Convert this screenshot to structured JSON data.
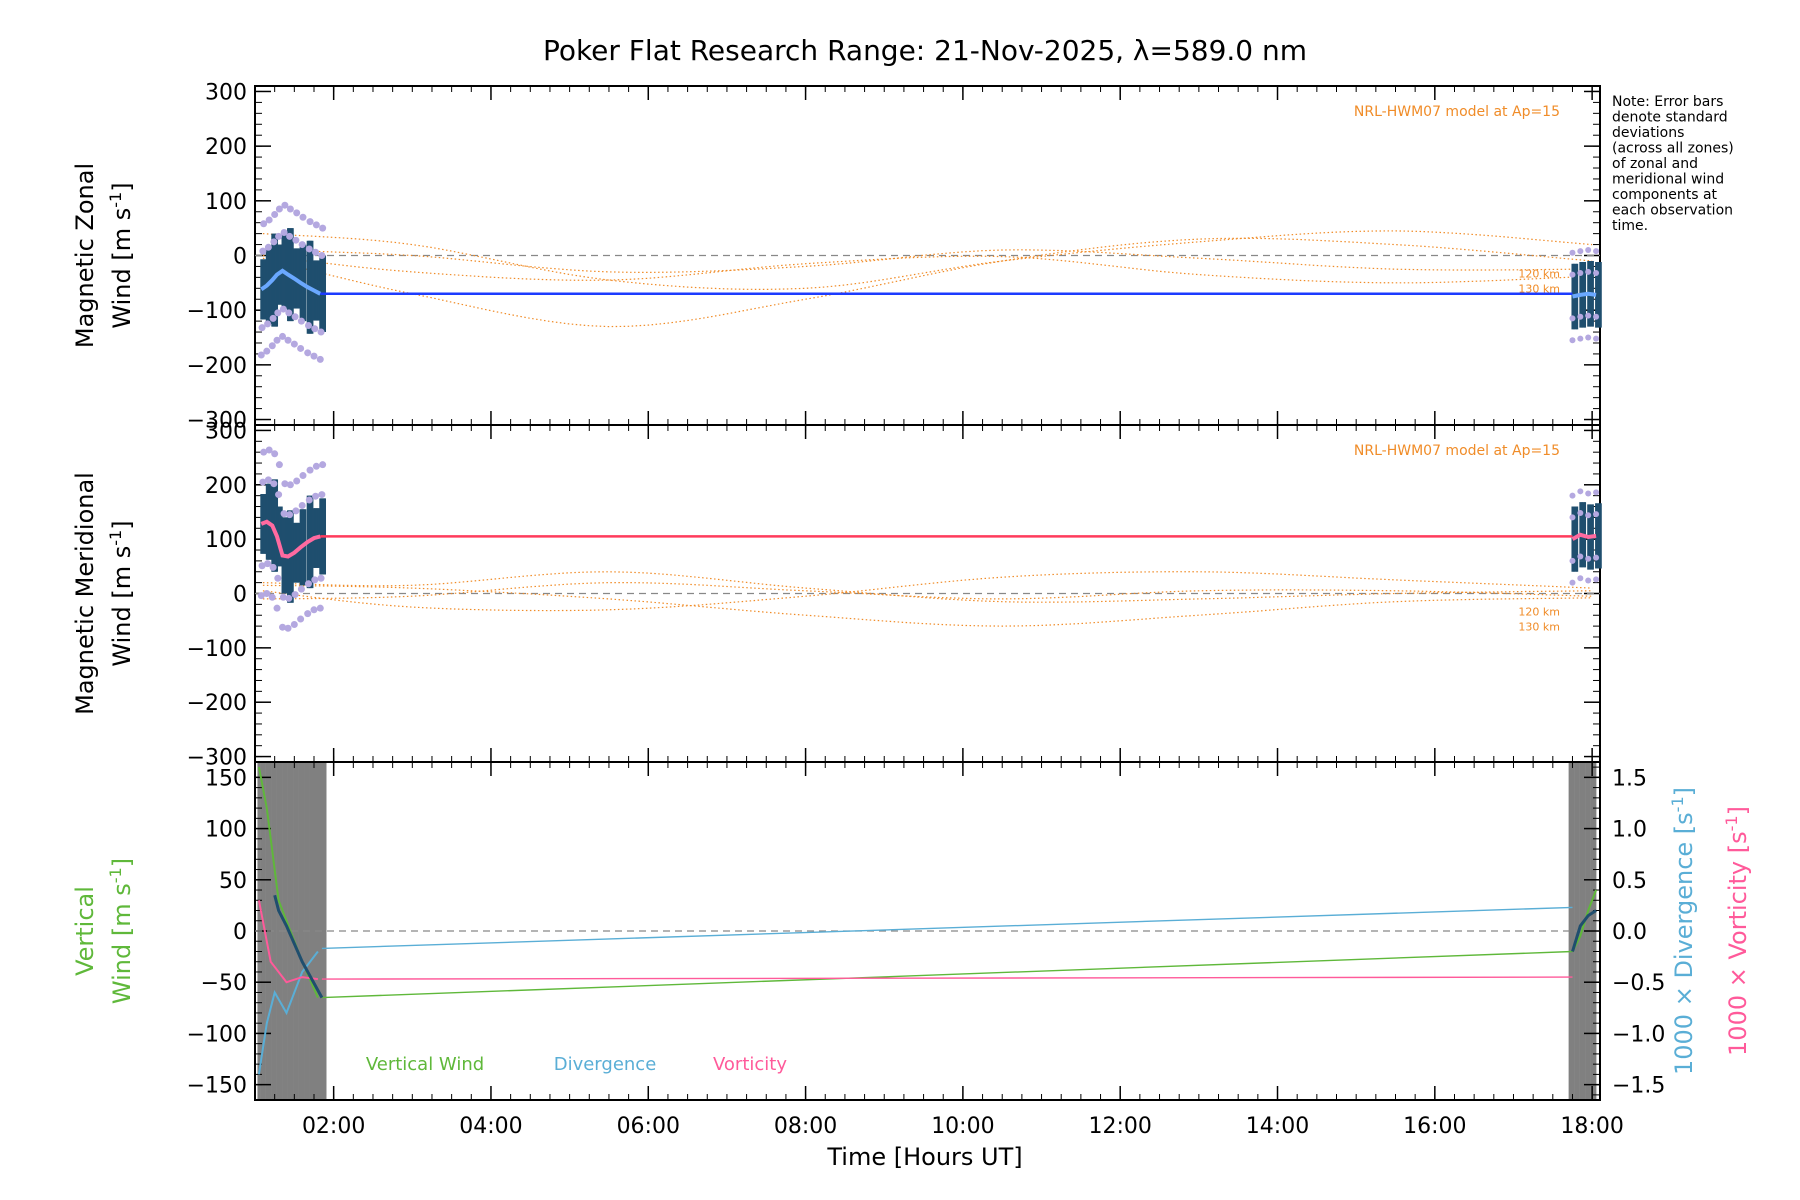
{
  "title": "Poker Flat Research Range: 21-Nov-2025, λ=589.0 nm",
  "note": "Note: Error bars denote standard deviations (across all zones) of zonal and meridional wind components at each observation time.",
  "note_lines": [
    "Note: Error bars",
    "denote standard",
    "deviations",
    "(across all zones)",
    "of zonal and",
    "meridional wind",
    "components at",
    "each observation",
    "time."
  ],
  "colors": {
    "zonal": "#1c3bff",
    "meridional": "#ff3b5c",
    "model": "#f08c28",
    "errorbar": "#1f4e6e",
    "zone": "#b4a8e0",
    "vertical": "#5fb83a",
    "divergence": "#5aaed6",
    "vorticity": "#ff5a9a",
    "sky": "#808080"
  },
  "chart_data": [
    {
      "type": "line",
      "name": "zonal",
      "ylabel_top": "Magnetic Zonal",
      "ylabel_bottom": "Wind [m s",
      "ylabel_sup": "-1",
      "ylabel_close": "]",
      "ylim": [
        -310,
        310
      ],
      "yticks": [
        -300,
        -200,
        -100,
        0,
        100,
        200,
        300
      ],
      "model_label": "NRL-HWM07 model at Ap=15",
      "model_levels": [
        "120 km",
        "130 km"
      ],
      "series_hours": [
        1.08,
        1.15,
        1.22,
        1.28,
        1.35,
        1.42,
        1.5,
        1.58,
        1.67,
        1.75,
        1.83
      ],
      "series_values": [
        -62,
        -55,
        -45,
        -35,
        -28,
        -35,
        -42,
        -50,
        -58,
        -64,
        -70
      ],
      "flat_value": -70,
      "late_hours": [
        17.75,
        17.85,
        17.95,
        18.05
      ],
      "late_values": [
        -75,
        -72,
        -70,
        -72
      ],
      "model_curves": [
        [
          [
            1.1,
            40
          ],
          [
            3.0,
            20
          ],
          [
            5.5,
            -45
          ],
          [
            8.0,
            -60
          ],
          [
            10.5,
            -10
          ],
          [
            13.0,
            25
          ],
          [
            15.5,
            45
          ],
          [
            18.0,
            20
          ]
        ],
        [
          [
            1.1,
            10
          ],
          [
            3.0,
            0
          ],
          [
            5.5,
            -30
          ],
          [
            8.0,
            -20
          ],
          [
            10.5,
            10
          ],
          [
            13.0,
            -5
          ],
          [
            15.5,
            -25
          ],
          [
            18.0,
            -25
          ]
        ],
        [
          [
            1.1,
            -5
          ],
          [
            3.0,
            -70
          ],
          [
            5.5,
            -130
          ],
          [
            8.0,
            -80
          ],
          [
            10.5,
            -10
          ],
          [
            13.0,
            30
          ],
          [
            15.5,
            20
          ],
          [
            18.0,
            -10
          ]
        ],
        [
          [
            1.1,
            0
          ],
          [
            3.0,
            -30
          ],
          [
            5.5,
            -45
          ],
          [
            8.0,
            -15
          ],
          [
            10.5,
            -2
          ],
          [
            13.0,
            -35
          ],
          [
            15.5,
            -50
          ],
          [
            18.0,
            -38
          ]
        ]
      ]
    },
    {
      "type": "line",
      "name": "meridional",
      "ylabel_top": "Magnetic Meridional",
      "ylabel_bottom": "Wind [m s",
      "ylabel_sup": "-1",
      "ylabel_close": "]",
      "ylim": [
        -310,
        310
      ],
      "yticks": [
        -300,
        -200,
        -100,
        0,
        100,
        200,
        300
      ],
      "model_label": "NRL-HWM07 model at Ap=15",
      "model_levels": [
        "120 km",
        "130 km"
      ],
      "series_hours": [
        1.08,
        1.15,
        1.22,
        1.28,
        1.35,
        1.42,
        1.5,
        1.58,
        1.67,
        1.75,
        1.83
      ],
      "series_values": [
        128,
        132,
        125,
        105,
        70,
        68,
        75,
        85,
        95,
        102,
        105
      ],
      "flat_value": 105,
      "late_hours": [
        17.75,
        17.85,
        17.95,
        18.05
      ],
      "late_values": [
        100,
        108,
        104,
        106
      ],
      "model_curves": [
        [
          [
            1.1,
            20
          ],
          [
            3.0,
            15
          ],
          [
            5.5,
            40
          ],
          [
            8.0,
            10
          ],
          [
            10.5,
            -15
          ],
          [
            13.0,
            -10
          ],
          [
            15.5,
            0
          ],
          [
            18.0,
            5
          ]
        ],
        [
          [
            1.1,
            5
          ],
          [
            3.0,
            -25
          ],
          [
            5.5,
            -30
          ],
          [
            8.0,
            -5
          ],
          [
            10.5,
            30
          ],
          [
            13.0,
            40
          ],
          [
            15.5,
            25
          ],
          [
            18.0,
            10
          ]
        ],
        [
          [
            1.1,
            -10
          ],
          [
            3.0,
            -5
          ],
          [
            5.5,
            20
          ],
          [
            8.0,
            5
          ],
          [
            10.5,
            -10
          ],
          [
            13.0,
            5
          ],
          [
            15.5,
            5
          ],
          [
            18.0,
            -5
          ]
        ],
        [
          [
            1.1,
            15
          ],
          [
            3.0,
            10
          ],
          [
            5.5,
            -10
          ],
          [
            8.0,
            -40
          ],
          [
            10.5,
            -60
          ],
          [
            13.0,
            -40
          ],
          [
            15.5,
            -15
          ],
          [
            18.0,
            -8
          ]
        ]
      ]
    },
    {
      "type": "line",
      "name": "vertical",
      "ylabel_top": "Vertical",
      "ylabel_bottom": "Wind [m s",
      "ylabel_sup": "-1",
      "ylabel_close": "]",
      "ylim": [
        -165,
        165
      ],
      "yticks": [
        -150,
        -100,
        -50,
        0,
        50,
        100,
        150
      ],
      "y2lim": [
        -1.65,
        1.65
      ],
      "y2ticks": [
        -1.5,
        -1.0,
        -0.5,
        0.0,
        0.5,
        1.0,
        1.5
      ],
      "y2label_div": "1000 × Divergence [s",
      "y2label_vor": "1000 × Vorticity [s",
      "y2label_sup": "-1",
      "y2label_close": "]",
      "legend": [
        "Vertical Wind",
        "Divergence",
        "Vorticity"
      ],
      "vertical_line": [
        [
          1.85,
          -65
        ],
        [
          17.75,
          -20
        ]
      ],
      "divergence_line": [
        [
          1.85,
          -0.17
        ],
        [
          17.75,
          0.23
        ]
      ],
      "vorticity_line": [
        [
          1.85,
          -0.47
        ],
        [
          17.75,
          -0.45
        ]
      ],
      "vertical_early": [
        [
          1.05,
          160
        ],
        [
          1.15,
          120
        ],
        [
          1.3,
          30
        ],
        [
          1.4,
          10
        ],
        [
          1.6,
          -30
        ],
        [
          1.8,
          -65
        ]
      ],
      "divergence_early": [
        [
          1.05,
          -1.4
        ],
        [
          1.15,
          -0.9
        ],
        [
          1.25,
          -0.6
        ],
        [
          1.4,
          -0.8
        ],
        [
          1.6,
          -0.4
        ],
        [
          1.8,
          -0.2
        ]
      ],
      "vorticity_early": [
        [
          1.05,
          0.3
        ],
        [
          1.2,
          -0.3
        ],
        [
          1.4,
          -0.5
        ],
        [
          1.6,
          -0.45
        ],
        [
          1.8,
          -0.47
        ]
      ],
      "darkblue_early": [
        [
          1.25,
          0.35
        ],
        [
          1.3,
          0.2
        ],
        [
          1.4,
          0.05
        ],
        [
          1.6,
          -0.3
        ],
        [
          1.85,
          -0.65
        ]
      ],
      "vertical_late": [
        [
          17.75,
          -20
        ],
        [
          17.85,
          -5
        ],
        [
          17.95,
          20
        ],
        [
          18.05,
          40
        ]
      ],
      "darkblue_late": [
        [
          17.75,
          -0.2
        ],
        [
          17.85,
          0.05
        ],
        [
          17.95,
          0.15
        ],
        [
          18.05,
          0.2
        ]
      ],
      "sky_early": [
        1.05,
        1.9
      ],
      "sky_late": [
        17.72,
        18.05
      ]
    }
  ],
  "xaxis": {
    "label": "Time [Hours UT]",
    "xlim": [
      1.0,
      18.1
    ],
    "ticks": [
      2,
      4,
      6,
      8,
      10,
      12,
      14,
      16,
      18
    ],
    "tick_labels": [
      "02:00",
      "04:00",
      "06:00",
      "08:00",
      "10:00",
      "12:00",
      "14:00",
      "16:00",
      "18:00"
    ]
  }
}
